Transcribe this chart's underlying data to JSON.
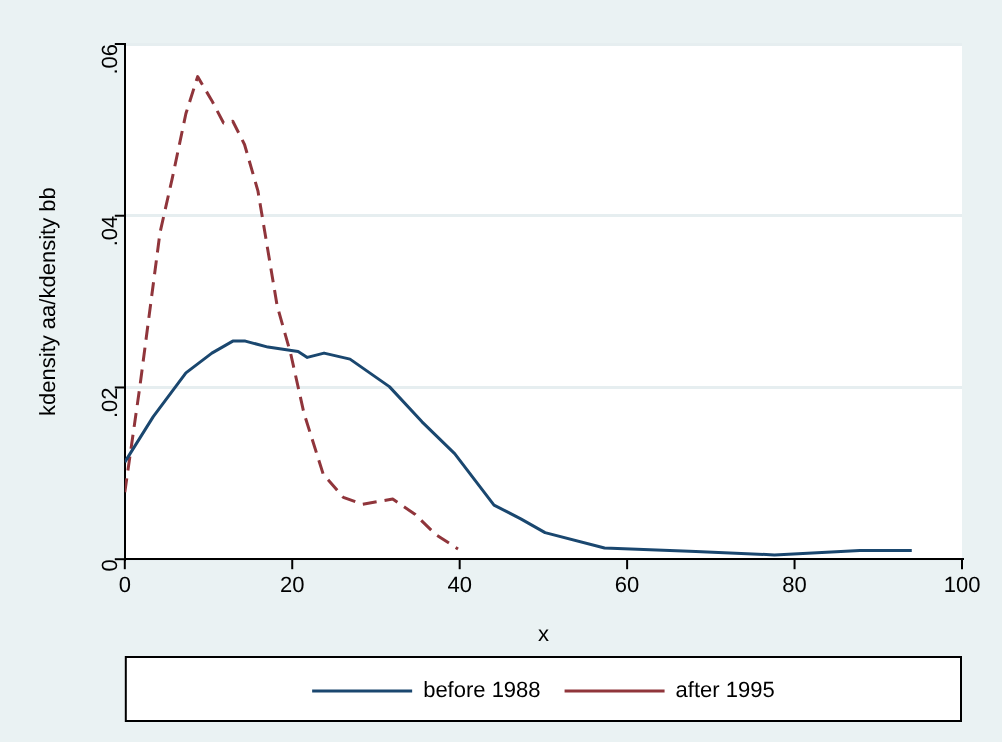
{
  "chart_data": {
    "type": "line",
    "xlabel": "x",
    "ylabel": "kdensity aa/kdensity bb",
    "xlim": [
      0,
      100
    ],
    "xticks": [
      0,
      20,
      40,
      60,
      80,
      100
    ],
    "ylim": [
      0,
      0.06
    ],
    "yticks": [
      0,
      {
        "value": 0.02,
        "label": ".02"
      },
      {
        "value": 0.04,
        "label": ".04"
      },
      {
        "value": 0.06,
        "label": ".06"
      }
    ],
    "grid": "y",
    "legend": "bottom",
    "marker": "none",
    "series": [
      {
        "name": "before 1988",
        "color": "#1a476f",
        "line_style": "solid",
        "x": [
          0,
          3.4,
          7.3,
          10.4,
          12.9,
          14.4,
          17.1,
          20.7,
          21.8,
          23.8,
          26.9,
          31.6,
          35.5,
          39.4,
          44.1,
          47.3,
          50.2,
          57.3,
          68.2,
          77.6,
          87.8,
          94
        ],
        "values": [
          0.0113,
          0.0166,
          0.0217,
          0.024,
          0.0254,
          0.0254,
          0.0247,
          0.0242,
          0.0235,
          0.024,
          0.0233,
          0.0201,
          0.016,
          0.0123,
          0.0063,
          0.0047,
          0.0031,
          0.0013,
          0.0009,
          0.0005,
          0.001,
          0.001
        ]
      },
      {
        "name": "after 1995",
        "color": "#90353b",
        "line_style": "dashed",
        "x": [
          0,
          1.8,
          4.2,
          5.7,
          7.3,
          8.7,
          10.4,
          11.8,
          12.9,
          14.3,
          15.9,
          18.2,
          19.8,
          21.4,
          23.7,
          26.1,
          28.4,
          32,
          34.7,
          37.1,
          39.8
        ],
        "values": [
          0.0078,
          0.0201,
          0.038,
          0.0445,
          0.0519,
          0.0562,
          0.0534,
          0.0508,
          0.051,
          0.0483,
          0.0429,
          0.0295,
          0.024,
          0.017,
          0.0099,
          0.0072,
          0.0064,
          0.007,
          0.0052,
          0.0029,
          0.0012
        ]
      }
    ]
  }
}
